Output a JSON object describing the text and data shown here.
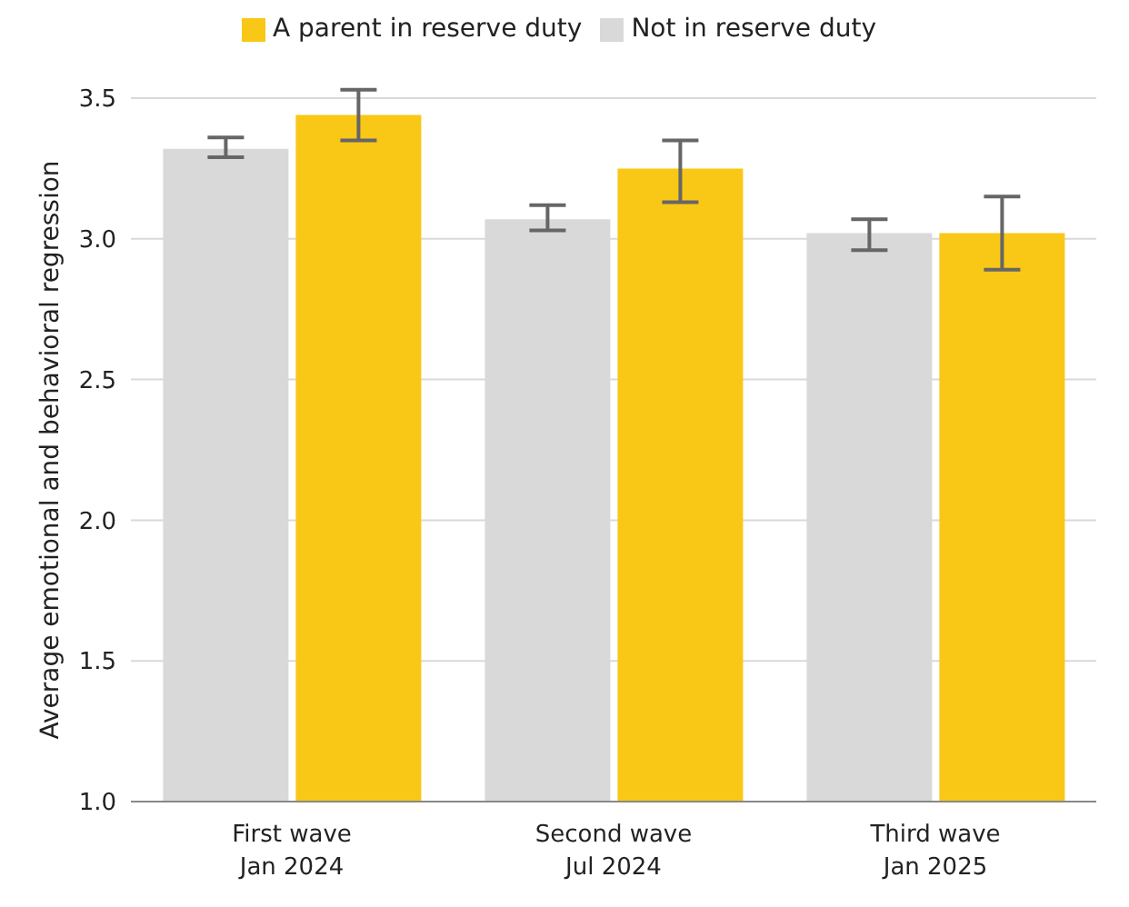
{
  "chart_data": {
    "type": "bar",
    "ylabel": "Average emotional and behavioral regression",
    "categories": [
      "First wave\nJan 2024",
      "Second wave\nJul 2024",
      "Third wave\nJan 2025"
    ],
    "series": [
      {
        "name": "Not in reserve duty",
        "color": "#d9d9d9",
        "values": [
          3.32,
          3.07,
          3.02
        ],
        "errors": [
          [
            3.29,
            3.36
          ],
          [
            3.03,
            3.12
          ],
          [
            2.96,
            3.07
          ]
        ]
      },
      {
        "name": "A parent in reserve duty",
        "color": "#f9c716",
        "values": [
          3.44,
          3.25,
          3.02
        ],
        "errors": [
          [
            3.35,
            3.53
          ],
          [
            3.13,
            3.35
          ],
          [
            2.89,
            3.15
          ]
        ]
      }
    ],
    "ylim": [
      1.0,
      3.5
    ],
    "yticks": [
      {
        "value": 1.0,
        "label": "1.0"
      },
      {
        "value": 1.5,
        "label": "1.5"
      },
      {
        "value": 2.0,
        "label": "2.0"
      },
      {
        "value": 2.5,
        "label": "2.5"
      },
      {
        "value": 3.0,
        "label": "3.0"
      },
      {
        "value": 3.5,
        "label": "3.5"
      }
    ],
    "grid": "y",
    "legend": "top"
  }
}
